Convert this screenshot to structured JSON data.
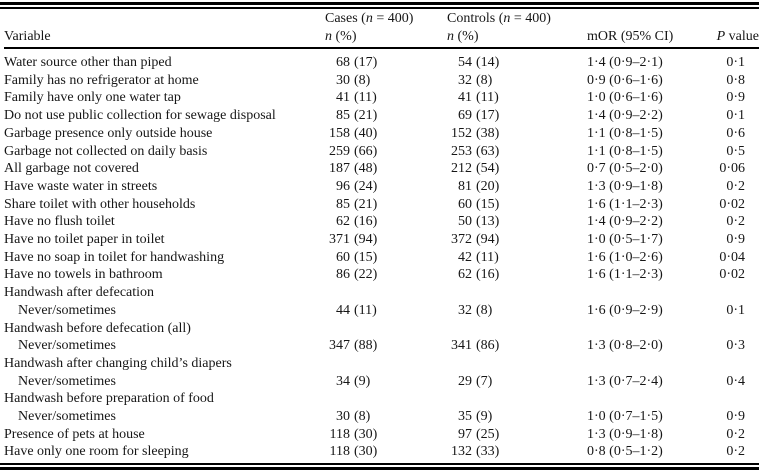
{
  "colors": {
    "background": "#ffffff",
    "text": "#161616",
    "rule": "#000000"
  },
  "table": {
    "header": {
      "variable": "Variable",
      "cases": {
        "pre": "Cases (",
        "n": "n",
        "post": " = 400)",
        "sub_n": "n",
        "sub_rest": " (%)"
      },
      "controls": {
        "pre": "Controls (",
        "n": "n",
        "post": " = 400)",
        "sub_n": "n",
        "sub_rest": " (%)"
      },
      "mor": "mOR (95% CI)",
      "p_italic": "P",
      "p_rest": " value"
    },
    "rows": [
      {
        "label": "Water source other than piped",
        "indent": false,
        "group": false,
        "cases_n": "68",
        "cases_pct": "(17)",
        "controls_n": "54",
        "controls_pct": "(14)",
        "mor": "1·4 (0·9–2·1)",
        "p": "0·1"
      },
      {
        "label": "Family has no refrigerator at home",
        "indent": false,
        "group": false,
        "cases_n": "30",
        "cases_pct": "(8)",
        "controls_n": "32",
        "controls_pct": "(8)",
        "mor": "0·9 (0·6–1·6)",
        "p": "0·8"
      },
      {
        "label": "Family have only one water tap",
        "indent": false,
        "group": false,
        "cases_n": "41",
        "cases_pct": "(11)",
        "controls_n": "41",
        "controls_pct": "(11)",
        "mor": "1·0 (0·6–1·6)",
        "p": "0·9"
      },
      {
        "label": "Do not use public collection for sewage disposal",
        "indent": false,
        "group": false,
        "cases_n": "85",
        "cases_pct": "(21)",
        "controls_n": "69",
        "controls_pct": "(17)",
        "mor": "1·4 (0·9–2·2)",
        "p": "0·1"
      },
      {
        "label": "Garbage presence only outside house",
        "indent": false,
        "group": false,
        "cases_n": "158",
        "cases_pct": "(40)",
        "controls_n": "152",
        "controls_pct": "(38)",
        "mor": "1·1 (0·8–1·5)",
        "p": "0·6"
      },
      {
        "label": "Garbage not collected on daily basis",
        "indent": false,
        "group": false,
        "cases_n": "259",
        "cases_pct": "(66)",
        "controls_n": "253",
        "controls_pct": "(63)",
        "mor": "1·1 (0·8–1·5)",
        "p": "0·5"
      },
      {
        "label": "All garbage not covered",
        "indent": false,
        "group": false,
        "cases_n": "187",
        "cases_pct": "(48)",
        "controls_n": "212",
        "controls_pct": "(54)",
        "mor": "0·7 (0·5–2·0)",
        "p": "0·06"
      },
      {
        "label": "Have waste water in streets",
        "indent": false,
        "group": false,
        "cases_n": "96",
        "cases_pct": "(24)",
        "controls_n": "81",
        "controls_pct": "(20)",
        "mor": "1·3 (0·9–1·8)",
        "p": "0·2"
      },
      {
        "label": "Share toilet with other households",
        "indent": false,
        "group": false,
        "cases_n": "85",
        "cases_pct": "(21)",
        "controls_n": "60",
        "controls_pct": "(15)",
        "mor": "1·6 (1·1–2·3)",
        "p": "0·02"
      },
      {
        "label": "Have no flush toilet",
        "indent": false,
        "group": false,
        "cases_n": "62",
        "cases_pct": "(16)",
        "controls_n": "50",
        "controls_pct": "(13)",
        "mor": "1·4 (0·9–2·2)",
        "p": "0·2"
      },
      {
        "label": "Have no toilet paper in toilet",
        "indent": false,
        "group": false,
        "cases_n": "371",
        "cases_pct": "(94)",
        "controls_n": "372",
        "controls_pct": "(94)",
        "mor": "1·0 (0·5–1·7)",
        "p": "0·9"
      },
      {
        "label": "Have no soap in toilet for handwashing",
        "indent": false,
        "group": false,
        "cases_n": "60",
        "cases_pct": "(15)",
        "controls_n": "42",
        "controls_pct": "(11)",
        "mor": "1·6 (1·0–2·6)",
        "p": "0·04"
      },
      {
        "label": "Have no towels in bathroom",
        "indent": false,
        "group": false,
        "cases_n": "86",
        "cases_pct": "(22)",
        "controls_n": "62",
        "controls_pct": "(16)",
        "mor": "1·6 (1·1–2·3)",
        "p": "0·02"
      },
      {
        "label": "Handwash after defecation",
        "indent": false,
        "group": true,
        "cases_n": "",
        "cases_pct": "",
        "controls_n": "",
        "controls_pct": "",
        "mor": "",
        "p": ""
      },
      {
        "label": "Never/sometimes",
        "indent": true,
        "group": false,
        "cases_n": "44",
        "cases_pct": "(11)",
        "controls_n": "32",
        "controls_pct": "(8)",
        "mor": "1·6 (0·9–2·9)",
        "p": "0·1"
      },
      {
        "label": "Handwash before defecation (all)",
        "indent": false,
        "group": true,
        "cases_n": "",
        "cases_pct": "",
        "controls_n": "",
        "controls_pct": "",
        "mor": "",
        "p": ""
      },
      {
        "label": "Never/sometimes",
        "indent": true,
        "group": false,
        "cases_n": "347",
        "cases_pct": "(88)",
        "controls_n": "341",
        "controls_pct": "(86)",
        "mor": "1·3 (0·8–2·0)",
        "p": "0·3"
      },
      {
        "label": "Handwash after changing child’s diapers",
        "indent": false,
        "group": true,
        "cases_n": "",
        "cases_pct": "",
        "controls_n": "",
        "controls_pct": "",
        "mor": "",
        "p": ""
      },
      {
        "label": "Never/sometimes",
        "indent": true,
        "group": false,
        "cases_n": "34",
        "cases_pct": "(9)",
        "controls_n": "29",
        "controls_pct": "(7)",
        "mor": "1·3 (0·7–2·4)",
        "p": "0·4"
      },
      {
        "label": "Handwash before preparation of food",
        "indent": false,
        "group": true,
        "cases_n": "",
        "cases_pct": "",
        "controls_n": "",
        "controls_pct": "",
        "mor": "",
        "p": ""
      },
      {
        "label": "Never/sometimes",
        "indent": true,
        "group": false,
        "cases_n": "30",
        "cases_pct": "(8)",
        "controls_n": "35",
        "controls_pct": "(9)",
        "mor": "1·0 (0·7–1·5)",
        "p": "0·9"
      },
      {
        "label": "Presence of pets at house",
        "indent": false,
        "group": false,
        "cases_n": "118",
        "cases_pct": "(30)",
        "controls_n": "97",
        "controls_pct": "(25)",
        "mor": "1·3 (0·9–1·8)",
        "p": "0·2"
      },
      {
        "label": "Have only one room for sleeping",
        "indent": false,
        "group": false,
        "cases_n": "118",
        "cases_pct": "(30)",
        "controls_n": "132",
        "controls_pct": "(33)",
        "mor": "0·8 (0·5–1·2)",
        "p": "0·2"
      }
    ]
  }
}
